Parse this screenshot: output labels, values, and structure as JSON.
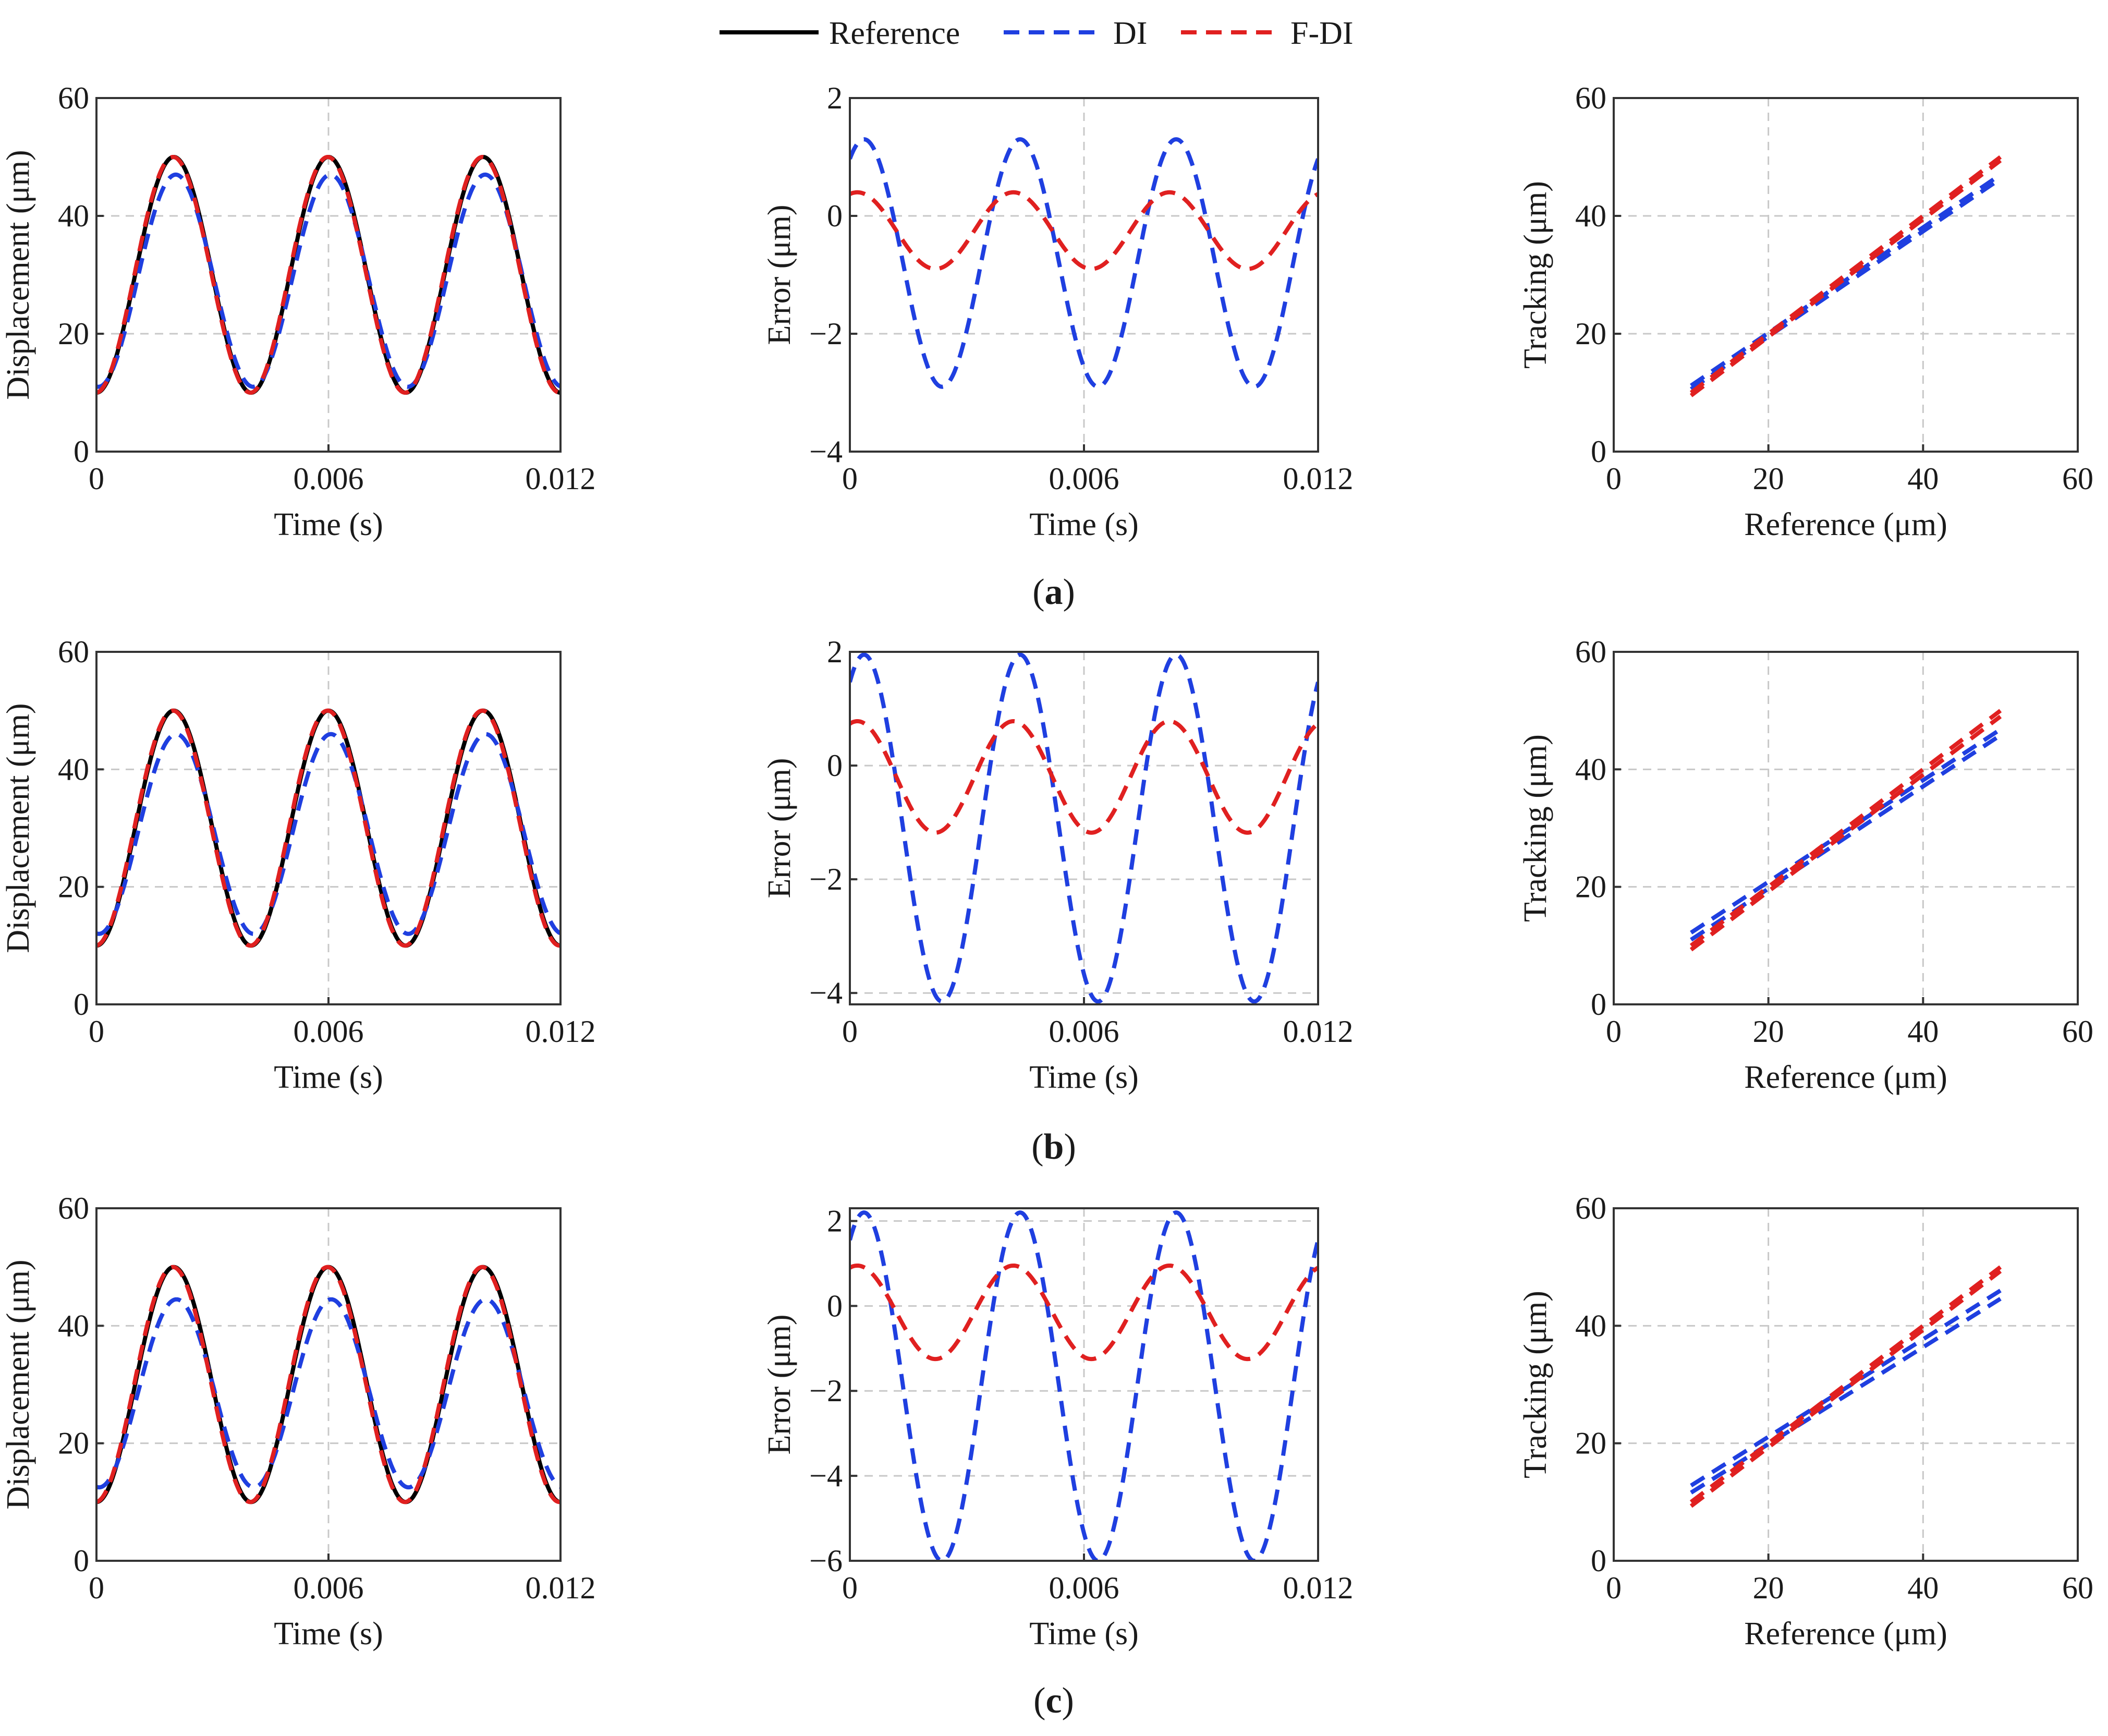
{
  "legend": {
    "entries": [
      {
        "label": "Reference",
        "color": "#000000",
        "style": "solid"
      },
      {
        "label": "DI",
        "color": "#1f3fe0",
        "style": "dashed"
      },
      {
        "label": "F-DI",
        "color": "#e02020",
        "style": "dashed"
      }
    ]
  },
  "captions": [
    {
      "open": "(",
      "letter": "a",
      "close": ")"
    },
    {
      "open": "(",
      "letter": "b",
      "close": ")"
    },
    {
      "open": "(",
      "letter": "c",
      "close": ")"
    }
  ],
  "colors": {
    "reference": "#000000",
    "di": "#1f3fe0",
    "fdi": "#e02020",
    "grid": "#c8c8c8",
    "axis": "#333333"
  },
  "chart_data": [
    {
      "id": "a-disp",
      "type": "line",
      "row": "a",
      "xlabel": "Time (s)",
      "ylabel": "Displacement (μm)",
      "xlim": [
        0,
        0.012
      ],
      "ylim": [
        0,
        60
      ],
      "xticks": [
        0,
        0.006,
        0.012
      ],
      "xtick_labels": [
        "0",
        "0.006",
        "0.012"
      ],
      "yticks": [
        0,
        20,
        40,
        60
      ],
      "ytick_labels": [
        "0",
        "20",
        "40",
        "60"
      ],
      "grid": true,
      "series": [
        {
          "name": "Reference",
          "kind": "sine",
          "mean": 30,
          "amp": 20,
          "freq": 250,
          "phase": 0
        },
        {
          "name": "DI",
          "kind": "sine",
          "mean": 29,
          "amp": 18,
          "freq": 250,
          "phase": -0.08
        },
        {
          "name": "F-DI",
          "kind": "sine",
          "mean": 30,
          "amp": 20,
          "freq": 250,
          "phase": 0.03
        }
      ]
    },
    {
      "id": "a-err",
      "type": "line",
      "row": "a",
      "xlabel": "Time (s)",
      "ylabel": "Error (μm)",
      "xlim": [
        0,
        0.012
      ],
      "ylim": [
        -4,
        2
      ],
      "xticks": [
        0,
        0.006,
        0.012
      ],
      "xtick_labels": [
        "0",
        "0.006",
        "0.012"
      ],
      "yticks": [
        -4,
        -2,
        0,
        2
      ],
      "ytick_labels": [
        "−4",
        "−2",
        "0",
        "2"
      ],
      "grid": true,
      "series": [
        {
          "name": "DI",
          "kind": "error",
          "mean": -0.8,
          "amp": 2.1,
          "freq": 250,
          "phase": 0.57,
          "h2": 0.0
        },
        {
          "name": "F-DI",
          "kind": "error",
          "mean": -0.25,
          "amp": 0.65,
          "freq": 250,
          "phase": 0.3,
          "h2": 0.0
        }
      ]
    },
    {
      "id": "a-track",
      "type": "line",
      "row": "a",
      "xlabel": "Reference (μm)",
      "ylabel": "Tracking (μm)",
      "xlim": [
        0,
        60
      ],
      "ylim": [
        0,
        60
      ],
      "xticks": [
        0,
        20,
        40,
        60
      ],
      "xtick_labels": [
        "0",
        "20",
        "40",
        "60"
      ],
      "yticks": [
        0,
        20,
        40,
        60
      ],
      "ytick_labels": [
        "0",
        "20",
        "40",
        "60"
      ],
      "grid": true,
      "series": [
        {
          "name": "DI",
          "kind": "lines",
          "lines": [
            {
              "x": [
                10,
                50
              ],
              "y": [
                11.2,
                47.0
              ]
            },
            {
              "x": [
                10,
                50
              ],
              "y": [
                10.6,
                46.3
              ]
            }
          ]
        },
        {
          "name": "F-DI",
          "kind": "lines",
          "lines": [
            {
              "x": [
                10,
                50
              ],
              "y": [
                10.0,
                50.0
              ]
            },
            {
              "x": [
                10,
                50
              ],
              "y": [
                9.5,
                49.4
              ]
            }
          ]
        }
      ]
    },
    {
      "id": "b-disp",
      "type": "line",
      "row": "b",
      "xlabel": "Time (s)",
      "ylabel": "Displacement (μm)",
      "xlim": [
        0,
        0.012
      ],
      "ylim": [
        0,
        60
      ],
      "xticks": [
        0,
        0.006,
        0.012
      ],
      "xtick_labels": [
        "0",
        "0.006",
        "0.012"
      ],
      "yticks": [
        0,
        20,
        40,
        60
      ],
      "ytick_labels": [
        "0",
        "20",
        "40",
        "60"
      ],
      "grid": true,
      "series": [
        {
          "name": "Reference",
          "kind": "sine",
          "mean": 30,
          "amp": 20,
          "freq": 250,
          "phase": 0
        },
        {
          "name": "DI",
          "kind": "sine",
          "mean": 29,
          "amp": 17,
          "freq": 250,
          "phase": -0.1
        },
        {
          "name": "F-DI",
          "kind": "sine",
          "mean": 30,
          "amp": 20,
          "freq": 250,
          "phase": 0.035
        }
      ]
    },
    {
      "id": "b-err",
      "type": "line",
      "row": "b",
      "xlabel": "Time (s)",
      "ylabel": "Error (μm)",
      "xlim": [
        0,
        0.012
      ],
      "ylim": [
        -4.2,
        2
      ],
      "xticks": [
        0,
        0.006,
        0.012
      ],
      "xtick_labels": [
        "0",
        "0.006",
        "0.012"
      ],
      "yticks": [
        -4,
        -2,
        0,
        2
      ],
      "ytick_labels": [
        "−4",
        "−2",
        "0",
        "2"
      ],
      "grid": true,
      "series": [
        {
          "name": "DI",
          "kind": "error",
          "mean": -1.1,
          "amp": 3.05,
          "freq": 250,
          "phase": 0.57,
          "h2": 0.0
        },
        {
          "name": "F-DI",
          "kind": "error",
          "mean": -0.2,
          "amp": 0.98,
          "freq": 250,
          "phase": 0.3,
          "h2": 0.0
        }
      ]
    },
    {
      "id": "b-track",
      "type": "line",
      "row": "b",
      "xlabel": "Reference (μm)",
      "ylabel": "Tracking (μm)",
      "xlim": [
        0,
        60
      ],
      "ylim": [
        0,
        60
      ],
      "xticks": [
        0,
        20,
        40,
        60
      ],
      "xtick_labels": [
        "0",
        "20",
        "40",
        "60"
      ],
      "yticks": [
        0,
        20,
        40,
        60
      ],
      "ytick_labels": [
        "0",
        "20",
        "40",
        "60"
      ],
      "grid": true,
      "series": [
        {
          "name": "DI",
          "kind": "lines",
          "lines": [
            {
              "x": [
                10,
                50
              ],
              "y": [
                12.2,
                46.8
              ]
            },
            {
              "x": [
                10,
                50
              ],
              "y": [
                11.0,
                45.8
              ]
            }
          ]
        },
        {
          "name": "F-DI",
          "kind": "lines",
          "lines": [
            {
              "x": [
                10,
                50
              ],
              "y": [
                10.0,
                50.0
              ]
            },
            {
              "x": [
                10,
                50
              ],
              "y": [
                9.3,
                49.0
              ]
            }
          ]
        }
      ]
    },
    {
      "id": "c-disp",
      "type": "line",
      "row": "c",
      "xlabel": "Time (s)",
      "ylabel": "Displacement (μm)",
      "xlim": [
        0,
        0.012
      ],
      "ylim": [
        0,
        60
      ],
      "xticks": [
        0,
        0.006,
        0.012
      ],
      "xtick_labels": [
        "0",
        "0.006",
        "0.012"
      ],
      "yticks": [
        0,
        20,
        40,
        60
      ],
      "ytick_labels": [
        "0",
        "20",
        "40",
        "60"
      ],
      "grid": true,
      "series": [
        {
          "name": "Reference",
          "kind": "sine",
          "mean": 30,
          "amp": 20,
          "freq": 250,
          "phase": 0
        },
        {
          "name": "DI",
          "kind": "sine",
          "mean": 28.5,
          "amp": 16,
          "freq": 250,
          "phase": -0.11
        },
        {
          "name": "F-DI",
          "kind": "sine",
          "mean": 30,
          "amp": 20,
          "freq": 250,
          "phase": 0.04
        }
      ]
    },
    {
      "id": "c-err",
      "type": "line",
      "row": "c",
      "xlabel": "Time (s)",
      "ylabel": "Error (μm)",
      "xlim": [
        0,
        0.012
      ],
      "ylim": [
        -6,
        2.3
      ],
      "xticks": [
        0,
        0.006,
        0.012
      ],
      "xtick_labels": [
        "0",
        "0.006",
        "0.012"
      ],
      "yticks": [
        -6,
        -4,
        -2,
        0,
        2
      ],
      "ytick_labels": [
        "−6",
        "−4",
        "−2",
        "0",
        "2"
      ],
      "grid": true,
      "series": [
        {
          "name": "DI",
          "kind": "error",
          "mean": -1.9,
          "amp": 4.1,
          "freq": 250,
          "phase": 0.57,
          "h2": 0.0
        },
        {
          "name": "F-DI",
          "kind": "error",
          "mean": -0.15,
          "amp": 1.1,
          "freq": 250,
          "phase": 0.3,
          "h2": 0.0
        }
      ]
    },
    {
      "id": "c-track",
      "type": "line",
      "row": "c",
      "xlabel": "Reference (μm)",
      "ylabel": "Tracking (μm)",
      "xlim": [
        0,
        60
      ],
      "ylim": [
        0,
        60
      ],
      "xticks": [
        0,
        20,
        40,
        60
      ],
      "xtick_labels": [
        "0",
        "20",
        "40",
        "60"
      ],
      "yticks": [
        0,
        20,
        40,
        60
      ],
      "ytick_labels": [
        "0",
        "20",
        "40",
        "60"
      ],
      "grid": true,
      "series": [
        {
          "name": "DI",
          "kind": "lines",
          "lines": [
            {
              "x": [
                10,
                50
              ],
              "y": [
                12.8,
                46.0
              ]
            },
            {
              "x": [
                10,
                50
              ],
              "y": [
                11.6,
                44.6
              ]
            }
          ]
        },
        {
          "name": "F-DI",
          "kind": "lines",
          "lines": [
            {
              "x": [
                10,
                50
              ],
              "y": [
                10.0,
                50.0
              ]
            },
            {
              "x": [
                10,
                50
              ],
              "y": [
                9.3,
                49.3
              ]
            }
          ]
        }
      ]
    }
  ]
}
